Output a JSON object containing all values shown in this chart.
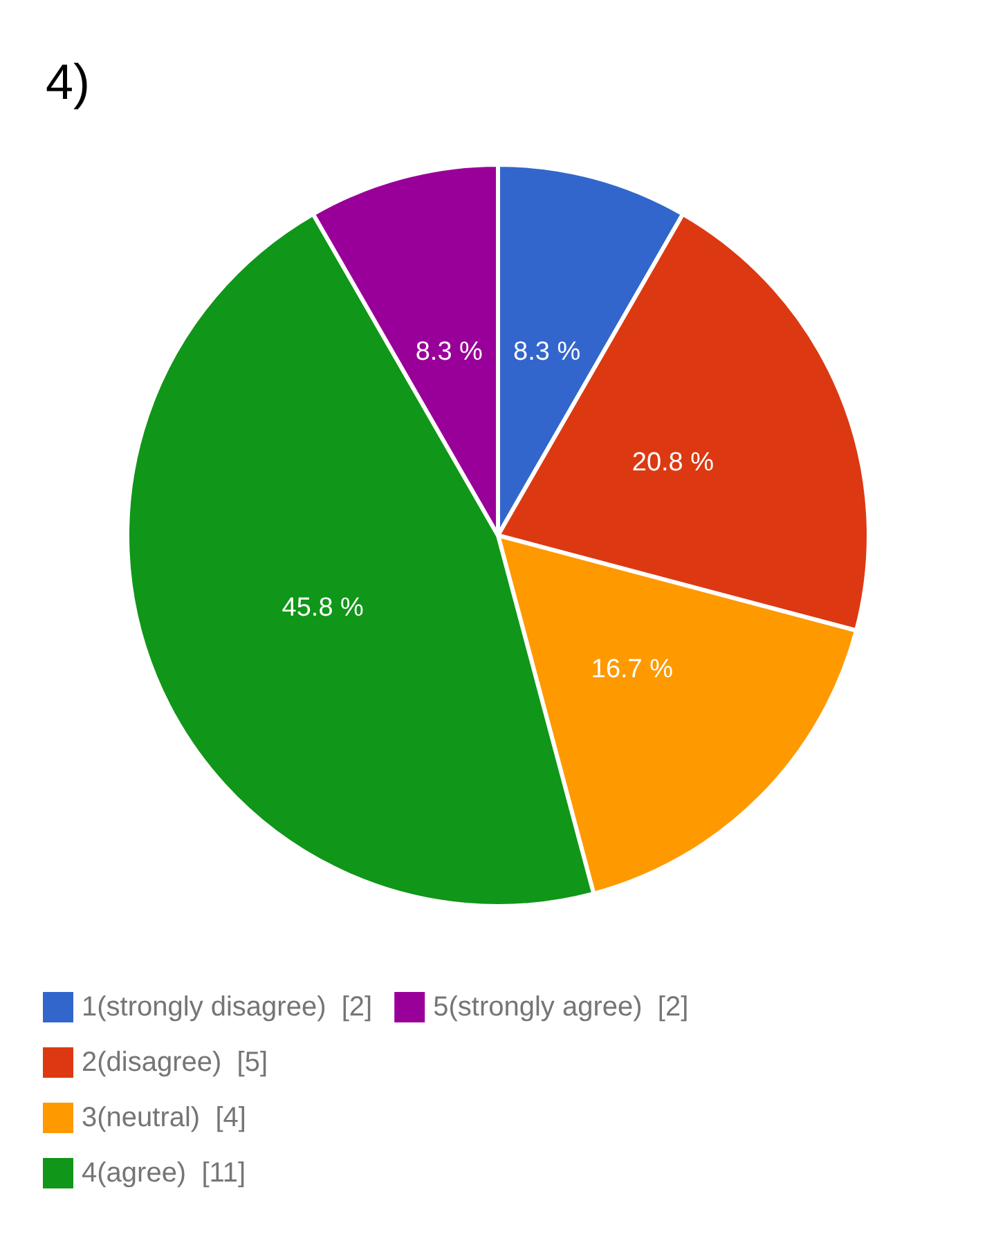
{
  "chart_data": {
    "type": "pie",
    "title": "4)",
    "categories": [
      "1(strongly disagree)  [2]",
      "2(disagree)  [5]",
      "3(neutral)  [4]",
      "4(agree)  [11]",
      "5(strongly agree)  [2]"
    ],
    "values": [
      8.3,
      20.8,
      16.7,
      45.8,
      8.3
    ],
    "value_labels": [
      "8.3 %",
      "20.8 %",
      "16.7 %",
      "45.8 %",
      "8.3 %"
    ],
    "colors": [
      "#3366cc",
      "#dc3912",
      "#ff9900",
      "#109618",
      "#990099"
    ],
    "legend": "bottom left"
  }
}
